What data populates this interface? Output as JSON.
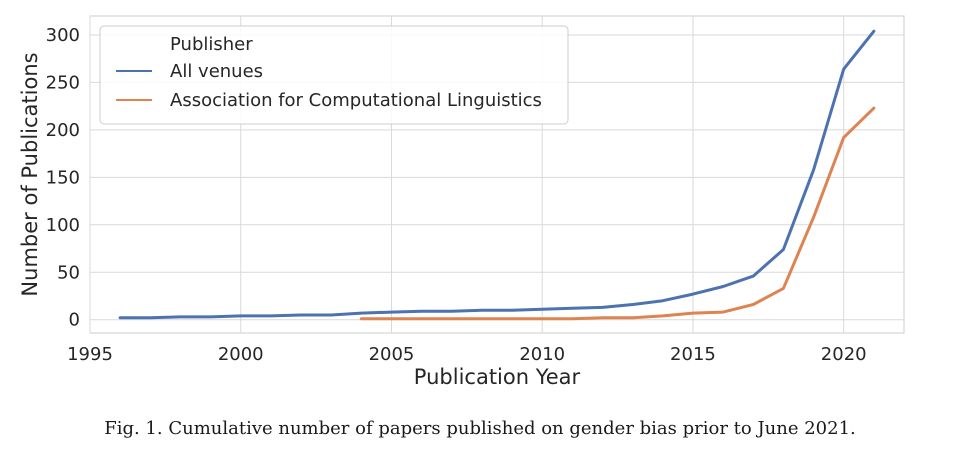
{
  "chart_data": {
    "type": "line",
    "xlabel": "Publication Year",
    "ylabel": "Number of Publications",
    "xlim": [
      1995,
      2022
    ],
    "ylim": [
      -14,
      320
    ],
    "xticks": [
      1995,
      2000,
      2005,
      2010,
      2015,
      2020
    ],
    "yticks": [
      0,
      50,
      100,
      150,
      200,
      250,
      300
    ],
    "grid": true,
    "legend": {
      "title": "Publisher",
      "placement": "top-left"
    },
    "series": [
      {
        "name": "All venues",
        "color": "#4c72b0",
        "x": [
          1996,
          1997,
          1998,
          1999,
          2000,
          2001,
          2002,
          2003,
          2004,
          2005,
          2006,
          2007,
          2008,
          2009,
          2010,
          2011,
          2012,
          2013,
          2014,
          2015,
          2016,
          2017,
          2018,
          2019,
          2020,
          2021
        ],
        "y": [
          2,
          2,
          3,
          3,
          4,
          4,
          5,
          5,
          7,
          8,
          9,
          9,
          10,
          10,
          11,
          12,
          13,
          16,
          20,
          27,
          35,
          46,
          74,
          158,
          264,
          304
        ]
      },
      {
        "name": "Association for Computational Linguistics",
        "color": "#dd8452",
        "x": [
          2004,
          2005,
          2006,
          2007,
          2008,
          2009,
          2010,
          2011,
          2012,
          2013,
          2014,
          2015,
          2016,
          2017,
          2018,
          2019,
          2020,
          2021
        ],
        "y": [
          1,
          1,
          1,
          1,
          1,
          1,
          1,
          1,
          2,
          2,
          4,
          7,
          8,
          16,
          33,
          108,
          192,
          223
        ]
      }
    ]
  },
  "caption": "Fig. 1.  Cumulative number of papers published on gender bias prior to June 2021."
}
